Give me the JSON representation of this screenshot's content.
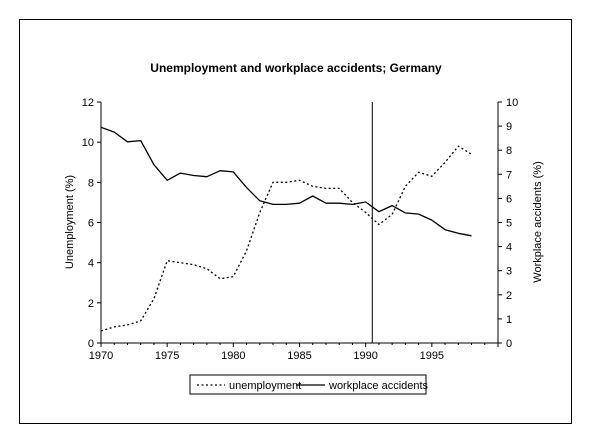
{
  "chart_data": {
    "type": "line",
    "title": "Unemployment and workplace accidents; Germany",
    "ylabel_left": "Unemployment (%)",
    "ylabel_right": "Workplace accidents (%)",
    "xlim": [
      1970,
      2000
    ],
    "xticks": [
      1970,
      1975,
      1980,
      1985,
      1990,
      1995
    ],
    "ylim_left": [
      0,
      12
    ],
    "yticks_left": [
      0,
      2,
      4,
      6,
      8,
      10,
      12
    ],
    "ylim_right": [
      0,
      10
    ],
    "yticks_right": [
      0,
      1,
      2,
      3,
      4,
      5,
      6,
      7,
      8,
      9,
      10
    ],
    "vertical_line_x": 1990.5,
    "legend_placement": "bottom-center",
    "series": [
      {
        "name": "unemployment",
        "axis": "left",
        "style": "dotted",
        "x": [
          1970,
          1971,
          1972,
          1973,
          1974,
          1975,
          1976,
          1977,
          1978,
          1979,
          1980,
          1981,
          1982,
          1983,
          1984,
          1985,
          1986,
          1987,
          1988,
          1989,
          1990,
          1991,
          1992,
          1993,
          1994,
          1995,
          1996,
          1997,
          1998
        ],
        "values": [
          0.6,
          0.8,
          0.9,
          1.1,
          2.2,
          4.1,
          4.0,
          3.9,
          3.7,
          3.2,
          3.3,
          4.6,
          6.5,
          8.0,
          8.0,
          8.1,
          7.8,
          7.7,
          7.7,
          7.0,
          6.5,
          5.9,
          6.4,
          7.8,
          8.5,
          8.3,
          9.0,
          9.8,
          9.4
        ]
      },
      {
        "name": "workplace accidents",
        "axis": "right",
        "style": "solid",
        "x": [
          1970,
          1971,
          1972,
          1973,
          1974,
          1975,
          1976,
          1977,
          1978,
          1979,
          1980,
          1981,
          1982,
          1983,
          1984,
          1985,
          1986,
          1987,
          1988,
          1989,
          1990,
          1991,
          1992,
          1993,
          1994,
          1995,
          1996,
          1997,
          1998
        ],
        "values": [
          8.95,
          8.75,
          8.35,
          8.4,
          7.4,
          6.75,
          7.05,
          6.95,
          6.9,
          7.15,
          7.1,
          6.45,
          5.9,
          5.75,
          5.75,
          5.8,
          6.1,
          5.8,
          5.8,
          5.75,
          5.85,
          5.45,
          5.7,
          5.4,
          5.35,
          5.1,
          4.7,
          4.55,
          4.45
        ]
      }
    ]
  }
}
